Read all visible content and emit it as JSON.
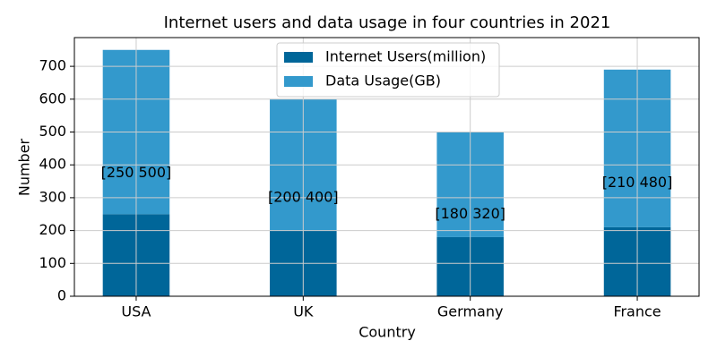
{
  "chart_data": {
    "type": "bar",
    "stacked": true,
    "title": "Internet users and data usage in four countries in 2021",
    "x_label": "Country",
    "y_label": "Number",
    "categories": [
      "USA",
      "UK",
      "Germany",
      "France"
    ],
    "series": [
      {
        "name": "Internet Users(million)",
        "color": "#006699",
        "values": [
          250,
          200,
          180,
          210
        ]
      },
      {
        "name": "Data Usage(GB)",
        "color": "#3399cc",
        "values": [
          500,
          400,
          320,
          480
        ]
      }
    ],
    "annotations": [
      "[250 500]",
      "[200 400]",
      "[180 320]",
      "[210 480]"
    ],
    "ylim": [
      0,
      787.5
    ],
    "yticks": [
      0,
      100,
      200,
      300,
      400,
      500,
      600,
      700
    ],
    "grid": true,
    "legend": "upper center"
  }
}
